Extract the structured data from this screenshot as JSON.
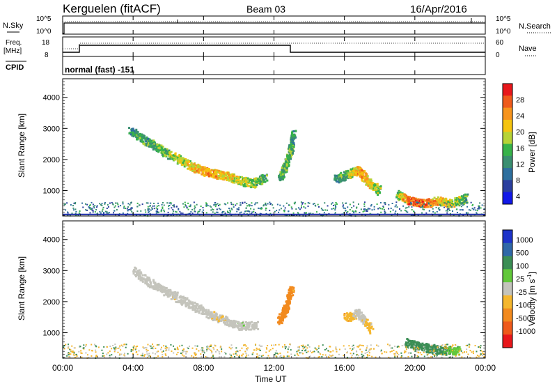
{
  "header": {
    "station": "Kerguelen (fitACF)",
    "beam": "Beam 03",
    "date": "16/Apr/2016"
  },
  "nsky_panel": {
    "left_label": "N.Sky",
    "left_ticks": [
      "10^5",
      "10^0"
    ],
    "right_label": "N.Search",
    "right_ticks": [
      "10^5",
      "10^0"
    ]
  },
  "freq_panel": {
    "left_label_top": "Freq.",
    "left_label_unit": "[MHz]",
    "left_ticks": [
      "18",
      "8"
    ],
    "right_label": "Nave",
    "right_ticks": [
      "60",
      "0"
    ]
  },
  "cpid_panel": {
    "label": "CPID",
    "value": "normal (fast) -151"
  },
  "time_axis": {
    "label": "Time UT",
    "ticks": [
      "00:00",
      "04:00",
      "08:00",
      "12:00",
      "16:00",
      "20:00",
      "00:00"
    ]
  },
  "power_colorbar": {
    "label": "Power [dB]",
    "ticks": [
      "28",
      "24",
      "20",
      "16",
      "12",
      "8",
      "4"
    ],
    "colors": [
      "#e8171b",
      "#ef5a1b",
      "#f7941d",
      "#f5c40f",
      "#b7d336",
      "#37b34a",
      "#3a8f71",
      "#2e6f9e",
      "#2b3f9e",
      "#1218e8"
    ]
  },
  "velocity_colorbar": {
    "label": "Velocity [m s",
    "label_sup": "-1",
    "label_end": "]",
    "ticks": [
      "1000",
      "500",
      "100",
      "25",
      "-25",
      "-100",
      "-500",
      "-1000"
    ],
    "colors": [
      "#1d33c9",
      "#2f68a8",
      "#3b8e55",
      "#62c83a",
      "#c4c4bc",
      "#f5b72e",
      "#f28a1e",
      "#ef5a1b",
      "#e8171b"
    ]
  },
  "chart_data": [
    {
      "type": "heatmap",
      "title": "Power [dB]",
      "xlabel": "Time UT",
      "ylabel": "Slant Range [km]",
      "xlim": [
        0,
        24
      ],
      "ylim": [
        180,
        4600
      ],
      "yticks": [
        1000,
        2000,
        3000,
        4000
      ],
      "zlim": [
        0,
        30
      ],
      "features": [
        {
          "x": [
            3.8,
            4.5,
            5.2,
            6.0,
            6.8,
            7.5,
            8.3,
            9.2,
            10.0,
            10.8,
            11.5
          ],
          "y": [
            2950,
            2700,
            2450,
            2200,
            1950,
            1750,
            1600,
            1500,
            1350,
            1250,
            1450
          ],
          "z": [
            10,
            12,
            13,
            15,
            17,
            20,
            22,
            19,
            17,
            15,
            12
          ]
        },
        {
          "x": [
            12.3,
            12.6,
            12.9,
            13.1
          ],
          "y": [
            1400,
            1800,
            2300,
            2900
          ],
          "z": [
            12,
            14,
            13,
            10
          ]
        },
        {
          "x": [
            15.5,
            16.2,
            16.8,
            17.3,
            18.0
          ],
          "y": [
            1400,
            1550,
            1700,
            1300,
            1000
          ],
          "z": [
            10,
            14,
            22,
            20,
            14
          ]
        },
        {
          "x": [
            19.0,
            19.7,
            20.5,
            21.3,
            22.0,
            23.0
          ],
          "y": [
            900,
            700,
            600,
            700,
            600,
            800
          ],
          "z": [
            14,
            26,
            24,
            20,
            18,
            12
          ]
        }
      ]
    },
    {
      "type": "heatmap",
      "title": "Velocity [m s-1]",
      "xlabel": "Time UT",
      "ylabel": "Slant Range [km]",
      "xlim": [
        0,
        24
      ],
      "ylim": [
        180,
        4600
      ],
      "yticks": [
        1000,
        2000,
        3000,
        4000
      ],
      "zlim": [
        -1000,
        1000
      ],
      "features": [
        {
          "x": [
            4.0,
            5.0,
            6.0,
            7.0,
            8.0,
            9.0,
            10.0,
            11.0
          ],
          "y": [
            3000,
            2600,
            2300,
            2000,
            1700,
            1450,
            1250,
            1250
          ],
          "z": [
            0,
            0,
            -10,
            5,
            0,
            -20,
            10,
            0
          ]
        },
        {
          "x": [
            12.3,
            12.7,
            13.0
          ],
          "y": [
            1400,
            1900,
            2500
          ],
          "z": [
            -200,
            -150,
            -100
          ]
        },
        {
          "x": [
            16.0,
            16.8,
            17.5
          ],
          "y": [
            1500,
            1650,
            1100
          ],
          "z": [
            -100,
            0,
            -50
          ]
        },
        {
          "x": [
            19.5,
            20.5,
            21.5,
            22.5
          ],
          "y": [
            700,
            550,
            450,
            450
          ],
          "z": [
            150,
            200,
            120,
            50
          ]
        }
      ]
    }
  ]
}
